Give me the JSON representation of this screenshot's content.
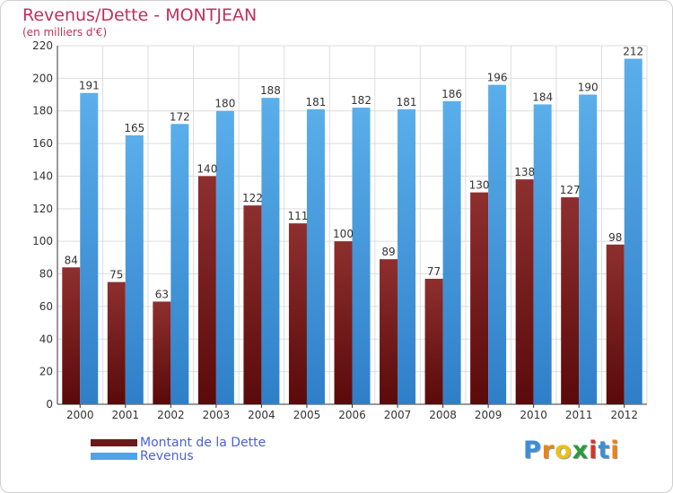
{
  "header": {
    "title": "Revenus/Dette - MONTJEAN",
    "subtitle": "(en milliers d'€)"
  },
  "chart_data": {
    "type": "bar",
    "title": "Revenus/Dette - MONTJEAN",
    "subtitle": "(en milliers d'€)",
    "xlabel": "",
    "ylabel": "",
    "ylim": [
      0,
      220
    ],
    "yticks": [
      0,
      20,
      40,
      60,
      80,
      100,
      120,
      140,
      160,
      180,
      200,
      220
    ],
    "grid": true,
    "legend_position": "bottom-left",
    "categories": [
      "2000",
      "2001",
      "2002",
      "2003",
      "2004",
      "2005",
      "2006",
      "2007",
      "2008",
      "2009",
      "2010",
      "2011",
      "2012"
    ],
    "series": [
      {
        "name": "Montant de la Dette",
        "color": "#8b2a2a",
        "values": [
          84,
          75,
          63,
          140,
          122,
          111,
          100,
          89,
          77,
          130,
          138,
          127,
          98
        ]
      },
      {
        "name": "Revenus",
        "color": "#4fa3e6",
        "values": [
          191,
          165,
          172,
          180,
          188,
          181,
          182,
          181,
          186,
          196,
          184,
          190,
          212
        ]
      }
    ]
  },
  "legend": {
    "items": [
      {
        "label": "Montant de la Dette",
        "color": "#6b1a1a"
      },
      {
        "label": "Revenus",
        "color": "#4fa3e6"
      }
    ]
  },
  "logo": {
    "letters": [
      {
        "char": "P",
        "color": "#3a8fd8"
      },
      {
        "char": "r",
        "color": "#e8851a"
      },
      {
        "char": "o",
        "color": "#e8c21a"
      },
      {
        "char": "x",
        "color": "#2a9a3a"
      },
      {
        "char": "i",
        "color": "#d8332a"
      },
      {
        "char": "t",
        "color": "#3a8fd8"
      },
      {
        "char": "i",
        "color": "#e8851a"
      }
    ]
  }
}
